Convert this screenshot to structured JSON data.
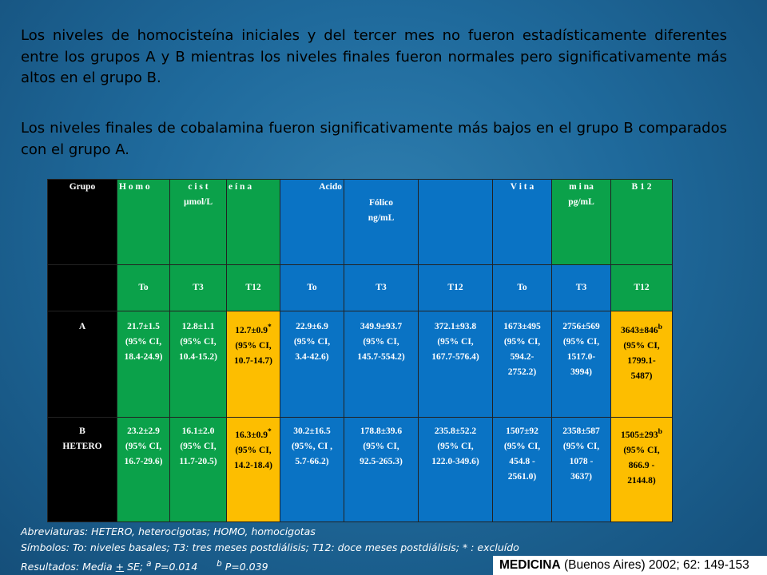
{
  "paragraphs": {
    "p1": "Los niveles de homocisteína iniciales y del tercer mes no fueron estadísticamente diferentes entre los grupos A y B mientras los niveles finales fueron normales pero significativamente más altos en el grupo B.",
    "p2": "Los niveles finales de cobalamina fueron significativamente más bajos en el grupo B comparados con el grupo A."
  },
  "table": {
    "header": {
      "grupo": "Grupo",
      "homo1": "H o m o",
      "homo2a": "c i s t",
      "homo2b": "µmol/L",
      "homo3": "e í n a",
      "acido": "Acido",
      "folico1": "Fólico",
      "folico2": "ng/mL",
      "vit1": "V i t a",
      "vit2a": "m i na",
      "vit2b": "pg/mL",
      "vit3": "B 1 2"
    },
    "subheaders": [
      "To",
      "T3",
      "T12",
      "To",
      "T3",
      "T12",
      "To",
      "T3",
      "T12"
    ],
    "row_a": {
      "group": "A",
      "cells": [
        {
          "v": "21.7±1.5",
          "ci": "(95% CI,",
          "r1": "18.4-24.9)",
          "r2": "",
          "sup": ""
        },
        {
          "v": "12.8±1.1",
          "ci": "(95% CI,",
          "r1": "10.4-15.2)",
          "r2": "",
          "sup": ""
        },
        {
          "v": "12.7±0.9",
          "ci": "(95% CI,",
          "r1": "10.7-14.7)",
          "r2": "",
          "sup": "*"
        },
        {
          "v": "22.9±6.9",
          "ci": "(95% CI,",
          "r1": "3.4-42.6)",
          "r2": "",
          "sup": ""
        },
        {
          "v": "349.9±93.7",
          "ci": "(95% CI,",
          "r1": "145.7-554.2)",
          "r2": "",
          "sup": ""
        },
        {
          "v": "372.1±93.8",
          "ci": "(95% CI,",
          "r1": "167.7-576.4)",
          "r2": "",
          "sup": ""
        },
        {
          "v": "1673±495",
          "ci": "(95% CI,",
          "r1": "594.2-",
          "r2": "2752.2)",
          "sup": ""
        },
        {
          "v": "2756±569",
          "ci": "(95% CI,",
          "r1": "1517.0-",
          "r2": "3994)",
          "sup": ""
        },
        {
          "v": "3643±846",
          "ci": "(95% CI,",
          "r1": "1799.1-",
          "r2": "5487)",
          "sup": "b"
        }
      ]
    },
    "row_b": {
      "group1": "B",
      "group2": "HETERO",
      "cells": [
        {
          "v": "23.2±2.9",
          "ci": "(95% CI,",
          "r1": "16.7-29.6)",
          "r2": "",
          "sup": ""
        },
        {
          "v": "16.1±2.0",
          "ci": "(95% CI,",
          "r1": "11.7-20.5)",
          "r2": "",
          "sup": ""
        },
        {
          "v": "16.3±0.9",
          "ci": "(95% CI,",
          "r1": "14.2-18.4)",
          "r2": "",
          "sup": "*"
        },
        {
          "v": "30.2±16.5",
          "ci": "(95%, CI ,",
          "r1": "5.7-66.2)",
          "r2": "",
          "sup": ""
        },
        {
          "v": "178.8±39.6",
          "ci": "(95% CI,",
          "r1": "92.5-265.3)",
          "r2": "",
          "sup": ""
        },
        {
          "v": "235.8±52.2",
          "ci": "(95% CI,",
          "r1": "122.0-349.6)",
          "r2": "",
          "sup": ""
        },
        {
          "v": "1507±92",
          "ci": "(95% CI,",
          "r1": "454.8 -",
          "r2": "2561.0)",
          "sup": ""
        },
        {
          "v": "2358±587",
          "ci": "(95% CI,",
          "r1": "1078 -",
          "r2": "3637)",
          "sup": ""
        },
        {
          "v": "1505±293",
          "ci": "(95% CI,",
          "r1": "866.9 -",
          "r2": "2144.8)",
          "sup": "b"
        }
      ]
    }
  },
  "footnotes": {
    "abbrev": "Abreviaturas: HETERO, heterocigotas; HOMO, homocigotas",
    "symbols": "Símbolos: To: niveles basales; T3: tres meses postdiálisis; T12: doce meses postdiálisis; * : excluído",
    "results_prefix": "Resultados: Media ",
    "results_pm": "+",
    "results_mid": " SE; ",
    "sup_a": "a",
    "p_a": " P=0.014",
    "sup_b": "b",
    "p_b": " P=0.039"
  },
  "citation": {
    "journal": "MEDICINA",
    "rest": " (Buenos Aires) 2002; 62: 149-153"
  },
  "colors": {
    "background": "#1f6a9c",
    "green": "#0ba14a",
    "blue": "#0a73c4",
    "orange": "#fdbe00",
    "black": "#000000"
  }
}
